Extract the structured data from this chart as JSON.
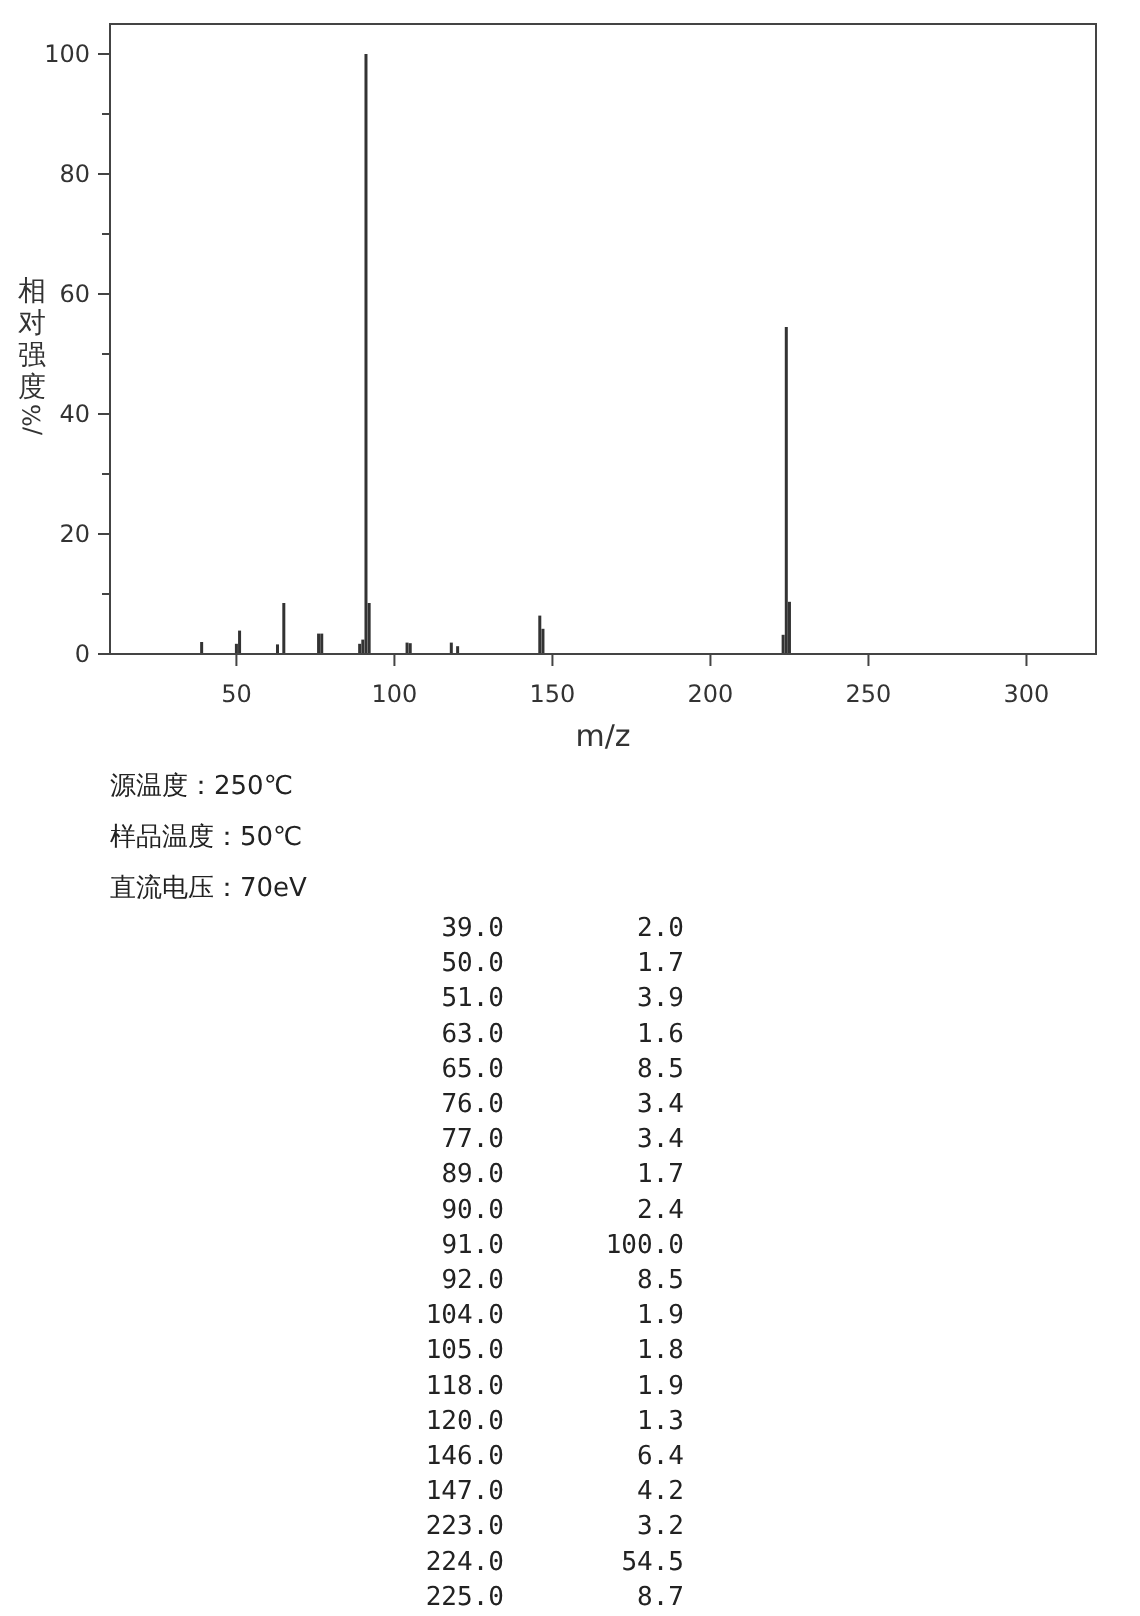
{
  "chart_data": {
    "type": "bar",
    "xlabel": "m/z",
    "ylabel": "相对强度/%",
    "x": [
      39.0,
      50.0,
      51.0,
      63.0,
      65.0,
      76.0,
      77.0,
      89.0,
      90.0,
      91.0,
      92.0,
      104.0,
      105.0,
      118.0,
      120.0,
      146.0,
      147.0,
      223.0,
      224.0,
      225.0
    ],
    "values": [
      2.0,
      1.7,
      3.9,
      1.6,
      8.5,
      3.4,
      3.4,
      1.7,
      2.4,
      100.0,
      8.5,
      1.9,
      1.8,
      1.9,
      1.3,
      6.4,
      4.2,
      3.2,
      54.5,
      8.7
    ],
    "color": "#333333",
    "xlim": [
      10,
      322
    ],
    "ylim": [
      0,
      105
    ],
    "xticks": [
      50,
      100,
      150,
      200,
      250,
      300
    ],
    "yticks": [
      0,
      {
        "value": 10,
        "label": null
      },
      20,
      {
        "value": 30,
        "label": null
      },
      40,
      {
        "value": 50,
        "label": null
      },
      60,
      {
        "value": 70,
        "label": null
      },
      80,
      {
        "value": 90,
        "label": null
      },
      100
    ],
    "annotations": [
      "源温度：250℃",
      "样品温度：50℃",
      "直流电压：70eV",
      "39.0 2.0",
      "50.0 1.7",
      "51.0 3.9",
      "63.0 1.6",
      "65.0 8.5",
      "76.0 3.4",
      "77.0 3.4",
      "89.0 1.7",
      "90.0 2.4",
      "91.0 100.0",
      "92.0 8.5",
      "104.0 1.9",
      "105.0 1.8",
      "118.0 1.9",
      "120.0 1.3",
      "146.0 6.4",
      "147.0 4.2",
      "223.0 3.2",
      "224.0 54.5",
      "225.0 8.7"
    ]
  }
}
